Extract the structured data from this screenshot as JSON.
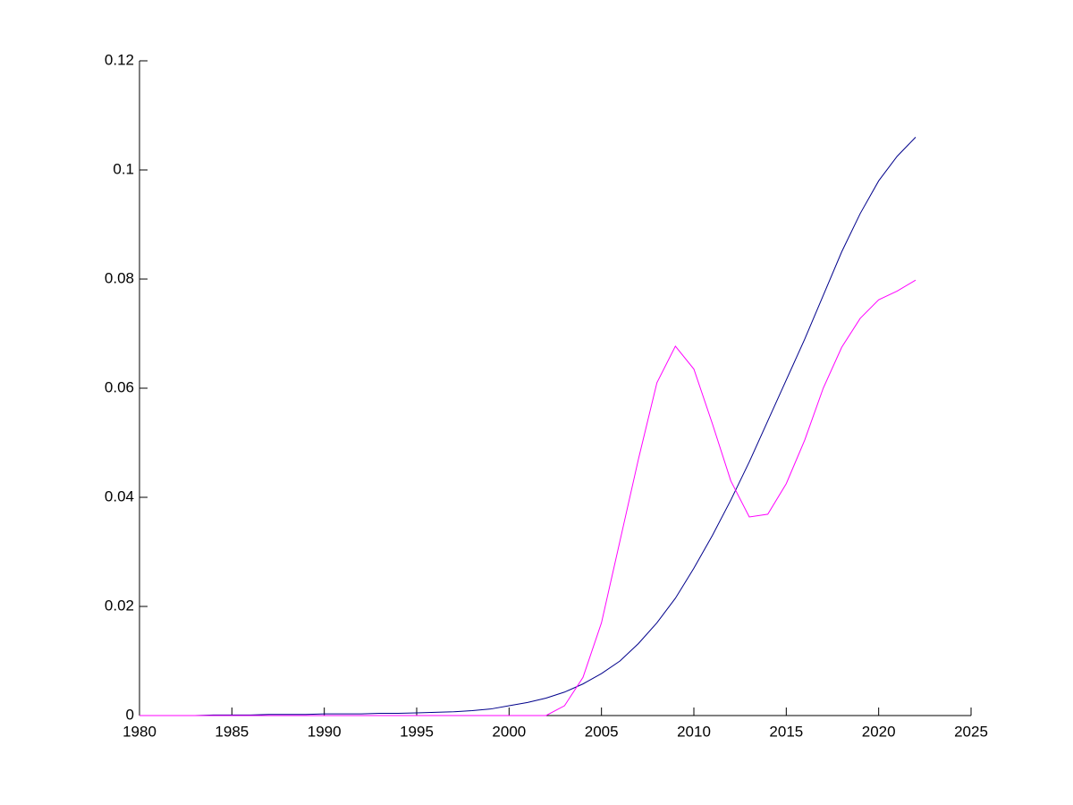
{
  "chart_data": {
    "type": "line",
    "x": [
      1980,
      1981,
      1982,
      1983,
      1984,
      1985,
      1986,
      1987,
      1988,
      1989,
      1990,
      1991,
      1992,
      1993,
      1994,
      1995,
      1996,
      1997,
      1998,
      1999,
      2000,
      2001,
      2002,
      2003,
      2004,
      2005,
      2006,
      2007,
      2008,
      2009,
      2010,
      2011,
      2012,
      2013,
      2014,
      2015,
      2016,
      2017,
      2018,
      2019,
      2020,
      2021,
      2022
    ],
    "series": [
      {
        "color": "#00008b",
        "values": [
          0,
          0,
          0,
          0,
          0.0001,
          0.0001,
          0.0001,
          0.0002,
          0.0002,
          0.0002,
          0.0003,
          0.0003,
          0.0003,
          0.0004,
          0.0004,
          0.0005,
          0.0006,
          0.0007,
          0.0009,
          0.0012,
          0.0018,
          0.0024,
          0.0032,
          0.0043,
          0.0058,
          0.0077,
          0.01,
          0.0132,
          0.017,
          0.0215,
          0.027,
          0.033,
          0.0395,
          0.0465,
          0.054,
          0.0615,
          0.069,
          0.077,
          0.085,
          0.092,
          0.098,
          0.1025,
          0.106
        ]
      },
      {
        "color": "#ff00ff",
        "values": [
          0,
          0,
          0,
          0,
          0,
          0,
          0,
          0,
          0,
          0,
          0,
          0,
          0,
          0,
          0,
          0,
          0,
          0,
          0,
          0,
          0,
          0,
          0,
          0.0018,
          0.007,
          0.017,
          0.032,
          0.047,
          0.061,
          0.0677,
          0.0635,
          0.0535,
          0.043,
          0.0364,
          0.0369,
          0.0425,
          0.0505,
          0.06,
          0.0675,
          0.0728,
          0.0762,
          0.0778,
          0.0798
        ]
      }
    ],
    "xlim": [
      1980,
      2025
    ],
    "xticks": [
      1980,
      1985,
      1990,
      1995,
      2000,
      2005,
      2010,
      2015,
      2020,
      2025
    ],
    "ylim": [
      0,
      0.12
    ],
    "yticks": [
      0,
      0.02,
      0.04,
      0.06,
      0.08,
      0.1,
      0.12
    ]
  }
}
